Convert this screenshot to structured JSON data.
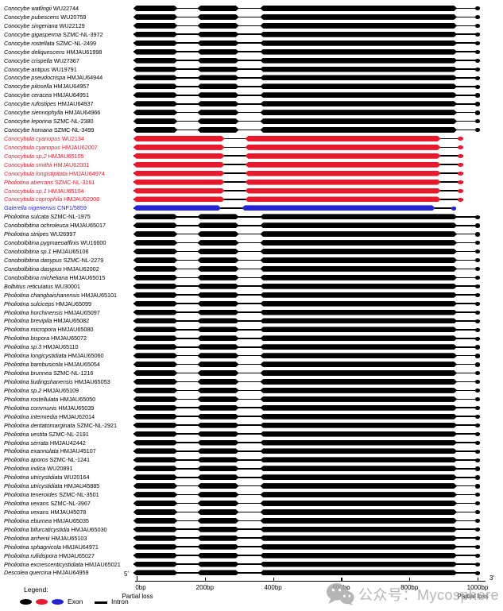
{
  "figure": {
    "description": "Gene structure diagram: exons (thick colored arrows) and introns (thin black lines) for 66 strains",
    "colors": {
      "black": "#000000",
      "red": "#e8192c",
      "blue": "#2424d5"
    },
    "patterns": {
      "black": {
        "exons_bp": [
          [
            -10,
            120
          ],
          [
            178,
            300
          ],
          [
            362,
            940
          ],
          [
            992,
            1008
          ]
        ]
      },
      "red": {
        "exons_bp": [
          [
            -10,
            258
          ],
          [
            318,
            892
          ],
          [
            942,
            958
          ]
        ]
      },
      "blue": {
        "exons_bp": [
          [
            -10,
            248
          ],
          [
            308,
            876
          ],
          [
            922,
            938
          ]
        ]
      }
    },
    "rows": [
      {
        "species": "Conocybe watlingii",
        "code": "WU22744",
        "color": "black"
      },
      {
        "species": "Conocybe pubescens",
        "code": "WU20759",
        "color": "black"
      },
      {
        "species": "Conocybe singeriana",
        "code": "WU22129",
        "color": "black"
      },
      {
        "species": "Conocybe gigasperma",
        "code": "SZMC-NL-3972",
        "color": "black"
      },
      {
        "species": "Conocybe rostellata",
        "code": "SZMC-NL-2499",
        "color": "black"
      },
      {
        "species": "Conocybe deliquescens",
        "code": "HMJAU61998",
        "color": "black"
      },
      {
        "species": "Conocybe crispella",
        "code": "WU27367",
        "color": "black"
      },
      {
        "species": "Conocybe antipus",
        "code": "WU19791",
        "color": "black"
      },
      {
        "species": "Conocybe pseudocrispa",
        "code": "HMJAU64944",
        "color": "black"
      },
      {
        "species": "Conocybe pilosella",
        "code": "HMJAU64957",
        "color": "black"
      },
      {
        "species": "Conocybe ceracea",
        "code": "HMJAU64951",
        "color": "black"
      },
      {
        "species": "Conocybe rufostipes",
        "code": "HMJAU64937",
        "color": "black"
      },
      {
        "species": "Conocybe siennophylla",
        "code": "HMJAU64966",
        "color": "black"
      },
      {
        "species": "Conocybe leporina",
        "code": "SZMC-NL-2380",
        "color": "black"
      },
      {
        "species": "Conocybe hornana",
        "code": "SZMC-NL-3499",
        "color": "black"
      },
      {
        "species": "Conocybula cyanopus",
        "code": "WU2134",
        "color": "red"
      },
      {
        "species": "Conocybula cyanopus",
        "code": "HMJAU62007",
        "color": "red"
      },
      {
        "species": "Conocybula sp.2",
        "code": "HMJAU65105",
        "color": "red"
      },
      {
        "species": "Conocybula smithii",
        "code": "HMJAU62001",
        "color": "red"
      },
      {
        "species": "Conocybula longistipitata",
        "code": "HMJAU64974",
        "color": "red"
      },
      {
        "species": "Pholiotina aberrans",
        "code": "SZMC-NL-3161",
        "color": "red"
      },
      {
        "species": "Conocybula sp.1",
        "code": "HMJAU65104",
        "color": "red"
      },
      {
        "species": "Conocybula coprophila",
        "code": "HMJAU62008",
        "color": "red"
      },
      {
        "species": "Galerella nigeriensis",
        "code": "CNF1/5859",
        "color": "blue"
      },
      {
        "species": "Pholiotina sulcata",
        "code": "SZMC-NL-1975",
        "color": "black"
      },
      {
        "species": "Conobolbitina ochroleuca",
        "code": "HMJAU65017",
        "color": "black"
      },
      {
        "species": "Pholiotina striipes",
        "code": "WU26997",
        "color": "black"
      },
      {
        "species": "Conobolbitina pygmaeoaffinis",
        "code": "WU16600",
        "color": "black"
      },
      {
        "species": "Conobolbitina sp.1",
        "code": "HMJAU65106",
        "color": "black"
      },
      {
        "species": "Conobolbitina dasypus",
        "code": "SZMC-NL-2279",
        "color": "black"
      },
      {
        "species": "Conobolbitina dasypus",
        "code": "HMJAU62002",
        "color": "black"
      },
      {
        "species": "Conobolbitina micheliana",
        "code": "HMJAU65015",
        "color": "black"
      },
      {
        "species": "Bolbitius reticulatus",
        "code": "WU30001",
        "color": "black"
      },
      {
        "species": "Pholiotina changbaishanensis",
        "code": "HMJAU65101",
        "color": "black"
      },
      {
        "species": "Pholiotina sulciceps",
        "code": "HMJAU65099",
        "color": "black"
      },
      {
        "species": "Pholiotina horchinensis",
        "code": "HMJAU65097",
        "color": "black"
      },
      {
        "species": "Pholiotina brevipila",
        "code": "HMJAU65082",
        "color": "black"
      },
      {
        "species": "Pholiotina micropora",
        "code": "HMJAU65080",
        "color": "black"
      },
      {
        "species": "Pholiotina bispora",
        "code": "HMJAU65072",
        "color": "black"
      },
      {
        "species": "Pholiotina sp.3",
        "code": "HMJAU65110",
        "color": "black"
      },
      {
        "species": "Pholiotina longicystidiata",
        "code": "HMJAU65060",
        "color": "black"
      },
      {
        "species": "Pholiotina bambusicola",
        "code": "HMJAU65054",
        "color": "black"
      },
      {
        "species": "Pholiotina brunnea",
        "code": "SZMC-NL-1216",
        "color": "black"
      },
      {
        "species": "Pholiotina liudingshanensis",
        "code": "HMJAU65053",
        "color": "black"
      },
      {
        "species": "Pholiotina sp.2",
        "code": "HMJAU65109",
        "color": "black"
      },
      {
        "species": "Pholiotina rostellulata",
        "code": "HMJAU65050",
        "color": "black"
      },
      {
        "species": "Pholiotina communis",
        "code": "HMJAU65039",
        "color": "black"
      },
      {
        "species": "Pholiotina intermedia",
        "code": "HMJAU62014",
        "color": "black"
      },
      {
        "species": "Pholiotina dentatomarginata",
        "code": "SZMC-NL-2921",
        "color": "black"
      },
      {
        "species": "Pholiotina vestita",
        "code": "SZMC-NL-2191",
        "color": "black"
      },
      {
        "species": "Pholiotina serrata",
        "code": "HMJAU42442",
        "color": "black"
      },
      {
        "species": "Pholiotina exannulata",
        "code": "HMJAU45107",
        "color": "black"
      },
      {
        "species": "Pholiotina aporos",
        "code": "SZMC-NL-1241",
        "color": "black"
      },
      {
        "species": "Pholiotina indica",
        "code": "WU20891",
        "color": "black"
      },
      {
        "species": "Pholiotina utricystidiata",
        "code": "WU20164",
        "color": "black"
      },
      {
        "species": "Pholiotina utricystidiata",
        "code": "HMJAU45885",
        "color": "black"
      },
      {
        "species": "Pholiotina teneroides",
        "code": "SZMC-NL-3501",
        "color": "black"
      },
      {
        "species": "Pholiotina vexans",
        "code": "SZMC-NL-3967",
        "color": "black"
      },
      {
        "species": "Pholiotina vexans",
        "code": "HMJAU45078",
        "color": "black"
      },
      {
        "species": "Pholiotina eburnea",
        "code": "HMJAU65035",
        "color": "black"
      },
      {
        "species": "Pholiotina bifurcaticystidia",
        "code": "HMJAU65030",
        "color": "black"
      },
      {
        "species": "Pholiotina arrhenii",
        "code": "HMJAU65103",
        "color": "black"
      },
      {
        "species": "Pholiotina sphagnicola",
        "code": "HMJAU64971",
        "color": "black"
      },
      {
        "species": "Pholiotina rufidispora",
        "code": "HMJAU65027",
        "color": "black"
      },
      {
        "species": "Pholiotina excrescenticystidiata",
        "code": "HMJAU65021",
        "color": "black"
      },
      {
        "species": "Descolea quercina",
        "code": "HMJAU64959",
        "color": "black"
      }
    ]
  },
  "axis": {
    "five_prime": "5'",
    "three_prime": "3'",
    "ticks": [
      {
        "bp": 0,
        "label": "0bp"
      },
      {
        "bp": 200,
        "label": "200bp"
      },
      {
        "bp": 400,
        "label": "400bp"
      },
      {
        "bp": 600,
        "label": "600bp"
      },
      {
        "bp": 800,
        "label": "800bp"
      },
      {
        "bp": 1000,
        "label": "1000bp"
      }
    ],
    "partial_loss_left": "Partial loss",
    "partial_loss_right": "Partial loss"
  },
  "legend": {
    "title": "Legend:",
    "exon_label": "Exon",
    "intron_label": "Intron",
    "exon_colors": [
      "#000000",
      "#e8192c",
      "#2424d5"
    ],
    "intron_color": "#000000"
  },
  "watermark": {
    "text": "公众号：Mycosphere"
  }
}
